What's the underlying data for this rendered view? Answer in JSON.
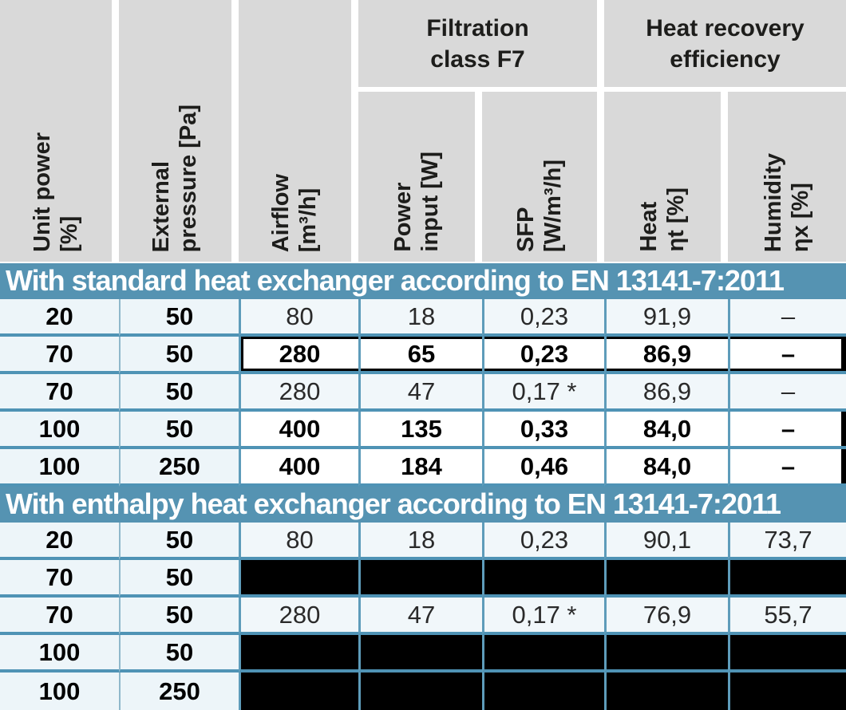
{
  "colors": {
    "header_gray": "#d9d9d9",
    "band_blue": "#5593b2",
    "grid_blue": "#4f93b5",
    "light_row": "#f1f7fa",
    "redacted_black": "#000000"
  },
  "group_headers": {
    "filtration": "Filtration\nclass F7",
    "heat_recovery": "Heat recovery\nefficiency"
  },
  "columns": [
    "Unit power\n[%]",
    "External\npressure [Pa]",
    "Airflow\n[m³/h]",
    "Power\ninput [W]",
    "SFP\n[W/m³/h]",
    "Heat\nηt [%]",
    "Humidity\nηx [%]"
  ],
  "sections": [
    {
      "header": "With standard heat exchanger according to EN 13141-7:2011",
      "rows": [
        {
          "unit_power": "20",
          "ext_pressure": "50",
          "cells": [
            "80",
            "18",
            "0,23",
            "91,9",
            "–"
          ],
          "variant": "light"
        },
        {
          "unit_power": "70",
          "ext_pressure": "50",
          "cells": [
            "280",
            "65",
            "0,23",
            "86,9",
            "–"
          ],
          "variant": "highlight"
        },
        {
          "unit_power": "70",
          "ext_pressure": "50",
          "cells": [
            "280",
            "47",
            "0,17 *",
            "86,9",
            "–"
          ],
          "variant": "light"
        },
        {
          "unit_power": "100",
          "ext_pressure": "50",
          "cells": [
            "400",
            "135",
            "0,33",
            "84,0",
            "–"
          ],
          "variant": "white"
        },
        {
          "unit_power": "100",
          "ext_pressure": "250",
          "cells": [
            "400",
            "184",
            "0,46",
            "84,0",
            "–"
          ],
          "variant": "white"
        }
      ]
    },
    {
      "header": "With enthalpy heat exchanger according to EN 13141-7:2011",
      "rows": [
        {
          "unit_power": "20",
          "ext_pressure": "50",
          "cells": [
            "80",
            "18",
            "0,23",
            "90,1",
            "73,7"
          ],
          "variant": "light"
        },
        {
          "unit_power": "70",
          "ext_pressure": "50",
          "cells": [
            "",
            "",
            "",
            "",
            ""
          ],
          "variant": "blackout"
        },
        {
          "unit_power": "70",
          "ext_pressure": "50",
          "cells": [
            "280",
            "47",
            "0,17 *",
            "76,9",
            "55,7"
          ],
          "variant": "light"
        },
        {
          "unit_power": "100",
          "ext_pressure": "50",
          "cells": [
            "",
            "",
            "",
            "",
            ""
          ],
          "variant": "blackout"
        },
        {
          "unit_power": "100",
          "ext_pressure": "250",
          "cells": [
            "",
            "",
            "",
            "",
            ""
          ],
          "variant": "blackout"
        }
      ]
    }
  ]
}
